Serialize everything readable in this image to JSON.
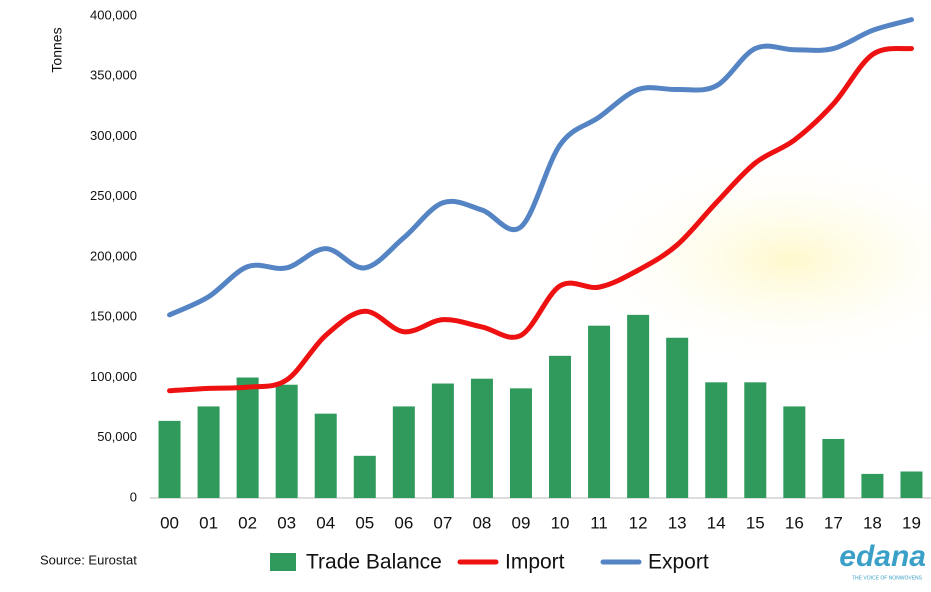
{
  "chart_data": {
    "type": "bar-line",
    "y_label": "Tonnes",
    "source": "Source: Eurostat",
    "logo": "edana",
    "logo_tagline": "THE VOICE OF NONWOVENS",
    "categories": [
      "00",
      "01",
      "02",
      "03",
      "04",
      "05",
      "06",
      "07",
      "08",
      "09",
      "10",
      "11",
      "12",
      "13",
      "14",
      "15",
      "16",
      "17",
      "18",
      "19"
    ],
    "series": [
      {
        "name": "Trade Balance",
        "type": "bar",
        "color": "#2f9a5c",
        "values": [
          64000,
          76000,
          100000,
          94000,
          70000,
          35000,
          76000,
          95000,
          99000,
          91000,
          118000,
          143000,
          152000,
          133000,
          96000,
          96000,
          76000,
          49000,
          20000,
          22000
        ]
      },
      {
        "name": "Import",
        "type": "line",
        "color": "#ee1111",
        "values": [
          89000,
          91000,
          92000,
          98000,
          135000,
          155000,
          138000,
          148000,
          142000,
          135000,
          176000,
          175000,
          189000,
          210000,
          245000,
          278000,
          297000,
          327000,
          368000,
          373000
        ]
      },
      {
        "name": "Export",
        "type": "line",
        "color": "#5584c4",
        "values": [
          152000,
          167000,
          192000,
          191000,
          207000,
          191000,
          216000,
          245000,
          239000,
          225000,
          293000,
          316000,
          339000,
          339000,
          342000,
          373000,
          372000,
          373000,
          388000,
          397000
        ]
      }
    ],
    "ylim": [
      0,
      400000
    ],
    "yticks": [
      {
        "value": 0,
        "label": "0"
      },
      {
        "value": 50000,
        "label": "50,000"
      },
      {
        "value": 100000,
        "label": "100,000"
      },
      {
        "value": 150000,
        "label": "150,000"
      },
      {
        "value": 200000,
        "label": "200,000"
      },
      {
        "value": 250000,
        "label": "250,000"
      },
      {
        "value": 300000,
        "label": "300,000"
      },
      {
        "value": 350000,
        "label": "350,000"
      },
      {
        "value": 400000,
        "label": "400,000"
      }
    ],
    "grid": false
  }
}
